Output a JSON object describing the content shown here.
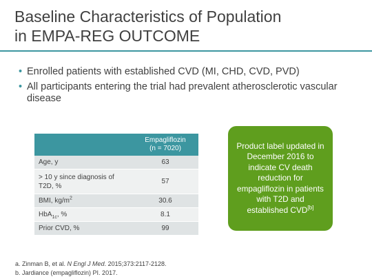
{
  "title": {
    "line1": "Baseline Characteristics of Population",
    "line2": "in EMPA-REG OUTCOME"
  },
  "bullets": [
    "Enrolled patients with established CVD (MI, CHD, CVD, PVD)",
    "All participants entering the trial had prevalent atherosclerotic vascular disease"
  ],
  "table": {
    "header_label": "",
    "header_value_line1": "Empagliflozin",
    "header_value_line2": "(n = 7020)",
    "rows": [
      {
        "label": "Age, y",
        "value": "63"
      },
      {
        "label": "> 10 y since diagnosis of T2D, %",
        "value": "57"
      },
      {
        "label_main": "BMI, kg/m",
        "label_sup": "2",
        "value": "30.6"
      },
      {
        "label_main": "HbA",
        "label_sub": "1c",
        "label_rest": ", %",
        "value": "8.1"
      },
      {
        "label": "Prior CVD, %",
        "value": "99"
      }
    ]
  },
  "callout": {
    "text": "Product label updated in December 2016 to indicate CV death reduction for empagliflozin in patients with T2D and established CVD",
    "sup": "[b]"
  },
  "references": {
    "a_prefix": "a. Zinman B, et al. ",
    "a_journal": "N Engl J Med",
    "a_suffix": ". 2015;373:2117-2128.",
    "b": "b. Jardiance (empagliflozin) PI. 2017."
  },
  "colors": {
    "accent": "#3c96a0",
    "callout": "#5f9e1e"
  }
}
